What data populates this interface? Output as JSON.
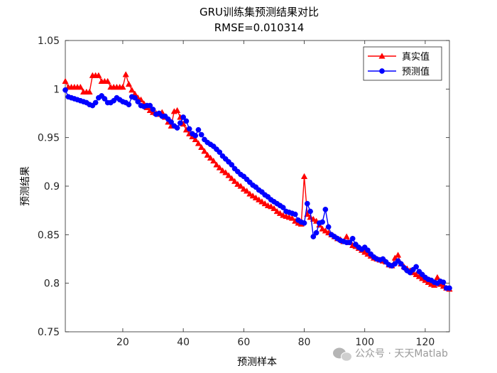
{
  "chart_data": {
    "type": "line",
    "title": "GRU训练集预测结果对比",
    "subtitle": "RMSE=0.010314",
    "xlabel": "预测样本",
    "ylabel": "预测结果",
    "xlim": [
      1,
      128
    ],
    "ylim": [
      0.75,
      1.05
    ],
    "xticks": [
      20,
      40,
      60,
      80,
      100,
      120
    ],
    "yticks": [
      0.75,
      0.8,
      0.85,
      0.9,
      0.95,
      1,
      1.05
    ],
    "grid": false,
    "legend_position": "top-right",
    "series": [
      {
        "name": "真实值",
        "color": "#ff0000",
        "marker": "triangle",
        "values": [
          1.008,
          1.002,
          1.002,
          1.002,
          1.002,
          1.002,
          0.997,
          0.997,
          0.997,
          1.014,
          1.014,
          1.014,
          1.008,
          1.008,
          1.008,
          1.002,
          1.002,
          1.002,
          1.002,
          1.002,
          1.015,
          1.005,
          0.999,
          0.995,
          0.991,
          0.989,
          0.985,
          0.981,
          0.978,
          0.976,
          0.975,
          0.974,
          0.976,
          0.971,
          0.966,
          0.962,
          0.977,
          0.978,
          0.971,
          0.964,
          0.958,
          0.954,
          0.951,
          0.948,
          0.944,
          0.94,
          0.936,
          0.932,
          0.929,
          0.926,
          0.922,
          0.919,
          0.916,
          0.914,
          0.911,
          0.908,
          0.905,
          0.902,
          0.9,
          0.897,
          0.895,
          0.892,
          0.89,
          0.888,
          0.886,
          0.884,
          0.882,
          0.88,
          0.879,
          0.877,
          0.874,
          0.872,
          0.87,
          0.869,
          0.868,
          0.867,
          0.864,
          0.862,
          0.861,
          0.91,
          0.871,
          0.868,
          0.866,
          0.864,
          0.86,
          0.856,
          0.854,
          0.852,
          0.85,
          0.848,
          0.846,
          0.845,
          0.843,
          0.848,
          0.842,
          0.839,
          0.838,
          0.836,
          0.834,
          0.832,
          0.83,
          0.828,
          0.826,
          0.825,
          0.824,
          0.823,
          0.822,
          0.819,
          0.818,
          0.826,
          0.829,
          0.82,
          0.817,
          0.815,
          0.813,
          0.811,
          0.809,
          0.807,
          0.805,
          0.803,
          0.801,
          0.799,
          0.798,
          0.806,
          0.799,
          0.797,
          0.795,
          0.794
        ]
      },
      {
        "name": "预测值",
        "color": "#0000ff",
        "marker": "circle",
        "values": [
          0.999,
          0.992,
          0.991,
          0.99,
          0.989,
          0.988,
          0.987,
          0.986,
          0.984,
          0.983,
          0.986,
          0.991,
          0.993,
          0.99,
          0.986,
          0.986,
          0.988,
          0.991,
          0.989,
          0.987,
          0.986,
          0.984,
          0.992,
          0.991,
          0.987,
          0.983,
          0.982,
          0.983,
          0.983,
          0.979,
          0.974,
          0.975,
          0.972,
          0.972,
          0.969,
          0.966,
          0.962,
          0.96,
          0.965,
          0.971,
          0.967,
          0.959,
          0.954,
          0.952,
          0.958,
          0.953,
          0.948,
          0.945,
          0.943,
          0.941,
          0.938,
          0.935,
          0.931,
          0.928,
          0.925,
          0.922,
          0.918,
          0.915,
          0.912,
          0.91,
          0.907,
          0.904,
          0.901,
          0.899,
          0.896,
          0.894,
          0.891,
          0.889,
          0.886,
          0.884,
          0.882,
          0.88,
          0.878,
          0.874,
          0.873,
          0.872,
          0.871,
          0.865,
          0.863,
          0.862,
          0.882,
          0.874,
          0.848,
          0.852,
          0.862,
          0.863,
          0.876,
          0.858,
          0.85,
          0.848,
          0.846,
          0.844,
          0.843,
          0.842,
          0.842,
          0.846,
          0.84,
          0.837,
          0.835,
          0.837,
          0.834,
          0.83,
          0.827,
          0.825,
          0.824,
          0.825,
          0.822,
          0.819,
          0.818,
          0.82,
          0.823,
          0.82,
          0.816,
          0.813,
          0.811,
          0.814,
          0.817,
          0.812,
          0.809,
          0.806,
          0.804,
          0.803,
          0.801,
          0.8,
          0.802,
          0.801,
          0.795,
          0.795
        ]
      }
    ]
  },
  "watermark": "公众号 · 天天Matlab",
  "watermark_icon": "wechat-icon"
}
